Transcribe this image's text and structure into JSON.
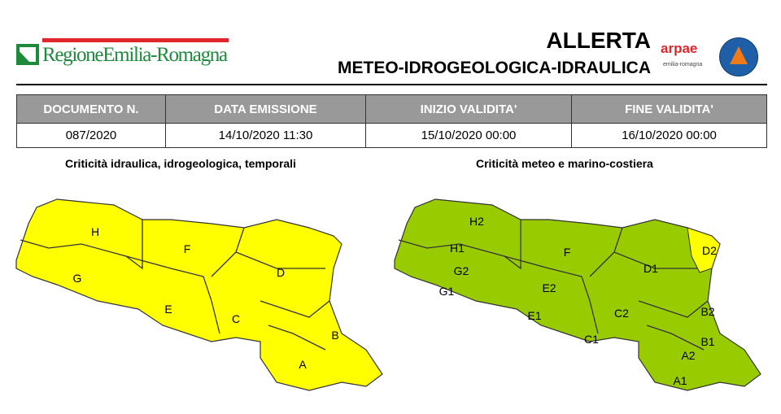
{
  "header": {
    "logo_text": "RegioneEmilia-Romagna",
    "title": "ALLERTA",
    "subtitle": "METEO-IDROGEOLOGICA-IDRAULICA",
    "arpae_logo": "arpae",
    "arpae_sub": "emilia-romagna"
  },
  "table": {
    "headers": [
      "DOCUMENTO N.",
      "DATA EMISSIONE",
      "INIZIO VALIDITA'",
      "FINE VALIDITA'"
    ],
    "values": [
      "087/2020",
      "14/10/2020 11:30",
      "15/10/2020 00:00",
      "16/10/2020 00:00"
    ]
  },
  "maps": [
    {
      "title": "Criticità idraulica, idrogeologica, temporali",
      "color": "#ffff00",
      "zones": [
        "H",
        "F",
        "D",
        "G",
        "E",
        "C",
        "B",
        "A"
      ]
    },
    {
      "title": "Criticità meteo e marino-costiera",
      "color": "#99cc00",
      "highlight_color": "#ffff00",
      "highlight_zone": "D2",
      "zones": [
        "H2",
        "H1",
        "G2",
        "G1",
        "F",
        "D1",
        "D2",
        "E2",
        "E1",
        "C2",
        "C1",
        "B2",
        "B1",
        "A2",
        "A1"
      ]
    }
  ]
}
